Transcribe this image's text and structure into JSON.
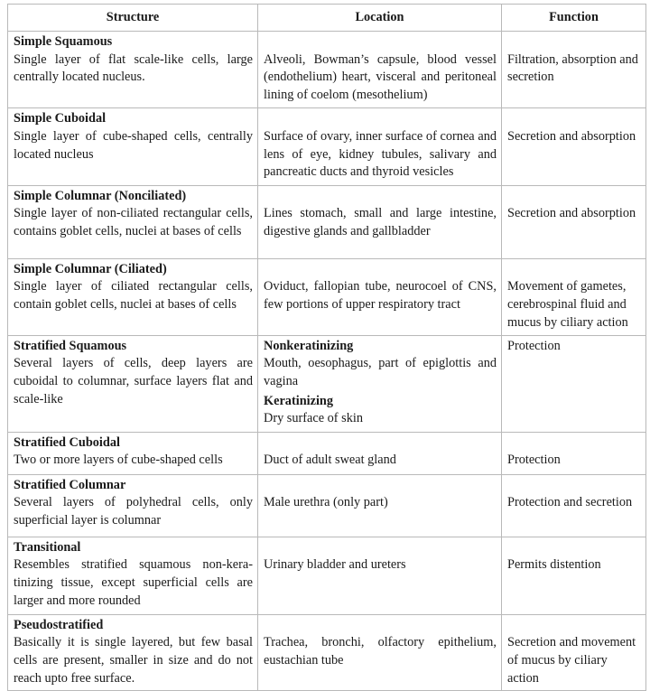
{
  "headers": [
    "Structure",
    "Location",
    "Function"
  ],
  "rows": [
    {
      "name": "Simple Squamous",
      "desc": "Single layer of flat scale-like cells, large centrally located nucleus.",
      "location": [
        {
          "heading": "",
          "text": "Alveoli, Bowman’s capsule, blood vessel (endothelium) heart, visceral and peritoneal lining of coelom (mesothelium)"
        }
      ],
      "function": "Filtration, absorption and secretion"
    },
    {
      "name": "Simple Cuboidal",
      "desc": "Single layer of cube-shaped cells, centrally located nucleus",
      "location": [
        {
          "heading": "",
          "text": "Surface of ovary, inner surface of cornea and lens of eye, kidney tubules, salivary and pancreatic ducts and thyroid vesicles"
        }
      ],
      "function": "Secretion and absorption"
    },
    {
      "name": "Simple Columnar (Nonciliated)",
      "desc": "Single layer of non-ciliated rectangular cells, contains goblet cells, nuclei at bases of cells",
      "location": [
        {
          "heading": "",
          "text": "Lines stomach, small and large intestine, digestive glands and gallbladder"
        }
      ],
      "function": "Secretion and absorption"
    },
    {
      "name": "Simple Columnar (Ciliated)",
      "desc": "Single layer of ciliated rectangular cells, contain goblet cells, nuclei at bases of cells",
      "location": [
        {
          "heading": "",
          "text": "Oviduct, fallopian tube, neurocoel of CNS, few portions of upper respiratory tract"
        }
      ],
      "function": "Movement of gametes, cerebrospinal fluid and mucus by ciliary action"
    },
    {
      "name": "Stratified Squamous",
      "desc": "Several layers of cells, deep layers are cuboidal to columnar, surface layers flat and scale-like",
      "location": [
        {
          "heading": "Nonkeratinizing",
          "text": "Mouth, oesophagus, part of epiglottis and vagina"
        },
        {
          "heading": "Keratinizing",
          "text": "Dry surface of skin"
        }
      ],
      "function": "Protection"
    },
    {
      "name": "Stratified Cuboidal",
      "desc": "Two or more layers of cube-shaped cells",
      "location": [
        {
          "heading": "",
          "text": "Duct of adult sweat gland"
        }
      ],
      "function": "Protection"
    },
    {
      "name": "Stratified Columnar",
      "desc": "Several layers of polyhedral cells, only superficial layer is columnar",
      "location": [
        {
          "heading": "",
          "text": "Male urethra (only part)"
        }
      ],
      "function": "Protection and secretion"
    },
    {
      "name": "Transitional",
      "desc": "Resembles stratified squamous non-kera-tinizing tissue, except superficial cells are larger and more rounded",
      "location": [
        {
          "heading": "",
          "text": "Urinary bladder and ureters"
        }
      ],
      "function": "Permits distention"
    },
    {
      "name": "Pseudostratified",
      "desc": "Basically it is single layered, but few basal cells are present, smaller in size and do not reach upto free surface.",
      "location": [
        {
          "heading": "",
          "text": "Trachea, bronchi, olfactory epithelium, eustachian tube"
        }
      ],
      "function": "Secretion and movement of mucus by ciliary action"
    }
  ]
}
